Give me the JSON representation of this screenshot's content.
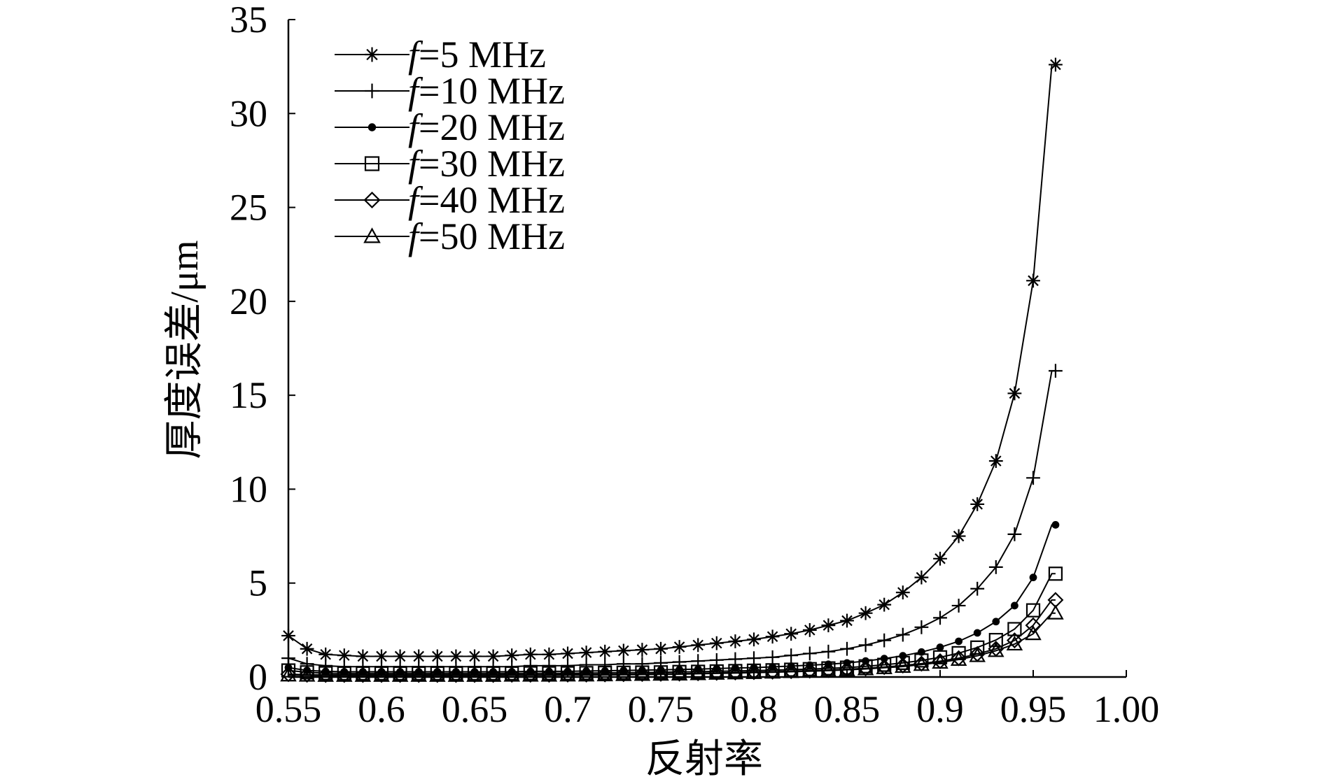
{
  "chart_data": {
    "type": "line",
    "xlabel": "反射率",
    "ylabel": "厚度误差/μm",
    "xlim": [
      0.55,
      1.0
    ],
    "ylim": [
      0,
      35
    ],
    "x_ticks": [
      0.55,
      0.6,
      0.65,
      0.7,
      0.75,
      0.8,
      0.85,
      0.9,
      0.95,
      1.0
    ],
    "x_tick_labels": [
      "0.55",
      "0.6",
      "0.65",
      "0.7",
      "0.75",
      "0.8",
      "0.85",
      "0.9",
      "0.95",
      "1.00"
    ],
    "y_ticks": [
      0,
      5,
      10,
      15,
      20,
      25,
      30,
      35
    ],
    "y_tick_labels": [
      "0",
      "5",
      "10",
      "15",
      "20",
      "25",
      "30",
      "35"
    ],
    "grid": false,
    "legend_position": "top-left",
    "x": [
      0.55,
      0.56,
      0.57,
      0.58,
      0.59,
      0.6,
      0.61,
      0.62,
      0.63,
      0.64,
      0.65,
      0.66,
      0.67,
      0.68,
      0.69,
      0.7,
      0.71,
      0.72,
      0.73,
      0.74,
      0.75,
      0.76,
      0.77,
      0.78,
      0.79,
      0.8,
      0.81,
      0.82,
      0.83,
      0.84,
      0.85,
      0.86,
      0.87,
      0.88,
      0.89,
      0.9,
      0.91,
      0.92,
      0.93,
      0.94,
      0.95,
      0.96,
      0.97
    ],
    "series": [
      {
        "name_prefix": "f",
        "name_rest": "=5   MHz",
        "marker": "asterisk",
        "values": [
          2.2,
          1.5,
          1.2,
          1.15,
          1.1,
          1.1,
          1.1,
          1.1,
          1.1,
          1.1,
          1.1,
          1.1,
          1.15,
          1.2,
          1.2,
          1.25,
          1.3,
          1.35,
          1.4,
          1.45,
          1.5,
          1.6,
          1.7,
          1.8,
          1.9,
          2.0,
          2.15,
          2.3,
          2.5,
          2.75,
          3.0,
          3.4,
          3.85,
          4.5,
          5.3,
          6.3,
          7.5,
          9.2,
          11.5,
          15.1,
          21.1,
          32.6,
          32.6
        ]
      },
      {
        "name_prefix": "f",
        "name_rest": "=10 MHz",
        "marker": "plus",
        "values": [
          1.0,
          0.7,
          0.6,
          0.55,
          0.55,
          0.55,
          0.55,
          0.55,
          0.55,
          0.55,
          0.55,
          0.55,
          0.55,
          0.6,
          0.6,
          0.6,
          0.65,
          0.65,
          0.7,
          0.7,
          0.75,
          0.8,
          0.85,
          0.9,
          0.95,
          1.0,
          1.05,
          1.15,
          1.25,
          1.35,
          1.5,
          1.7,
          1.95,
          2.25,
          2.65,
          3.15,
          3.8,
          4.7,
          5.85,
          7.6,
          10.6,
          16.3,
          16.3
        ]
      },
      {
        "name_prefix": "f",
        "name_rest": "=20 MHz",
        "marker": "dot",
        "values": [
          0.5,
          0.35,
          0.3,
          0.28,
          0.28,
          0.28,
          0.28,
          0.28,
          0.28,
          0.28,
          0.28,
          0.28,
          0.28,
          0.3,
          0.3,
          0.3,
          0.32,
          0.33,
          0.35,
          0.36,
          0.38,
          0.4,
          0.42,
          0.45,
          0.48,
          0.5,
          0.54,
          0.58,
          0.63,
          0.68,
          0.75,
          0.85,
          0.98,
          1.13,
          1.33,
          1.58,
          1.9,
          2.35,
          2.95,
          3.8,
          5.3,
          8.1,
          8.1
        ]
      },
      {
        "name_prefix": "f",
        "name_rest": "=30 MHz",
        "marker": "square",
        "values": [
          0.35,
          0.25,
          0.2,
          0.19,
          0.19,
          0.19,
          0.19,
          0.19,
          0.19,
          0.19,
          0.19,
          0.19,
          0.19,
          0.2,
          0.2,
          0.2,
          0.21,
          0.22,
          0.23,
          0.24,
          0.25,
          0.27,
          0.28,
          0.3,
          0.32,
          0.34,
          0.36,
          0.39,
          0.42,
          0.46,
          0.5,
          0.57,
          0.65,
          0.75,
          0.88,
          1.05,
          1.27,
          1.57,
          1.97,
          2.55,
          3.55,
          5.5,
          5.5
        ]
      },
      {
        "name_prefix": "f",
        "name_rest": "=40 MHz",
        "marker": "diamond",
        "values": [
          0.15,
          0.12,
          0.11,
          0.11,
          0.11,
          0.11,
          0.11,
          0.11,
          0.11,
          0.11,
          0.11,
          0.11,
          0.12,
          0.12,
          0.12,
          0.13,
          0.13,
          0.14,
          0.15,
          0.16,
          0.17,
          0.18,
          0.2,
          0.22,
          0.24,
          0.26,
          0.28,
          0.31,
          0.34,
          0.37,
          0.41,
          0.46,
          0.53,
          0.61,
          0.71,
          0.84,
          1.0,
          1.22,
          1.5,
          1.95,
          2.75,
          4.1,
          4.1
        ]
      },
      {
        "name_prefix": "f",
        "name_rest": "=50 MHz",
        "marker": "triangle",
        "values": [
          0.1,
          0.09,
          0.08,
          0.08,
          0.08,
          0.08,
          0.08,
          0.08,
          0.08,
          0.08,
          0.08,
          0.08,
          0.09,
          0.09,
          0.09,
          0.1,
          0.1,
          0.11,
          0.12,
          0.13,
          0.14,
          0.15,
          0.17,
          0.19,
          0.21,
          0.23,
          0.25,
          0.28,
          0.31,
          0.34,
          0.38,
          0.43,
          0.49,
          0.56,
          0.66,
          0.78,
          0.93,
          1.13,
          1.4,
          1.75,
          2.3,
          3.4,
          3.4
        ]
      }
    ]
  }
}
